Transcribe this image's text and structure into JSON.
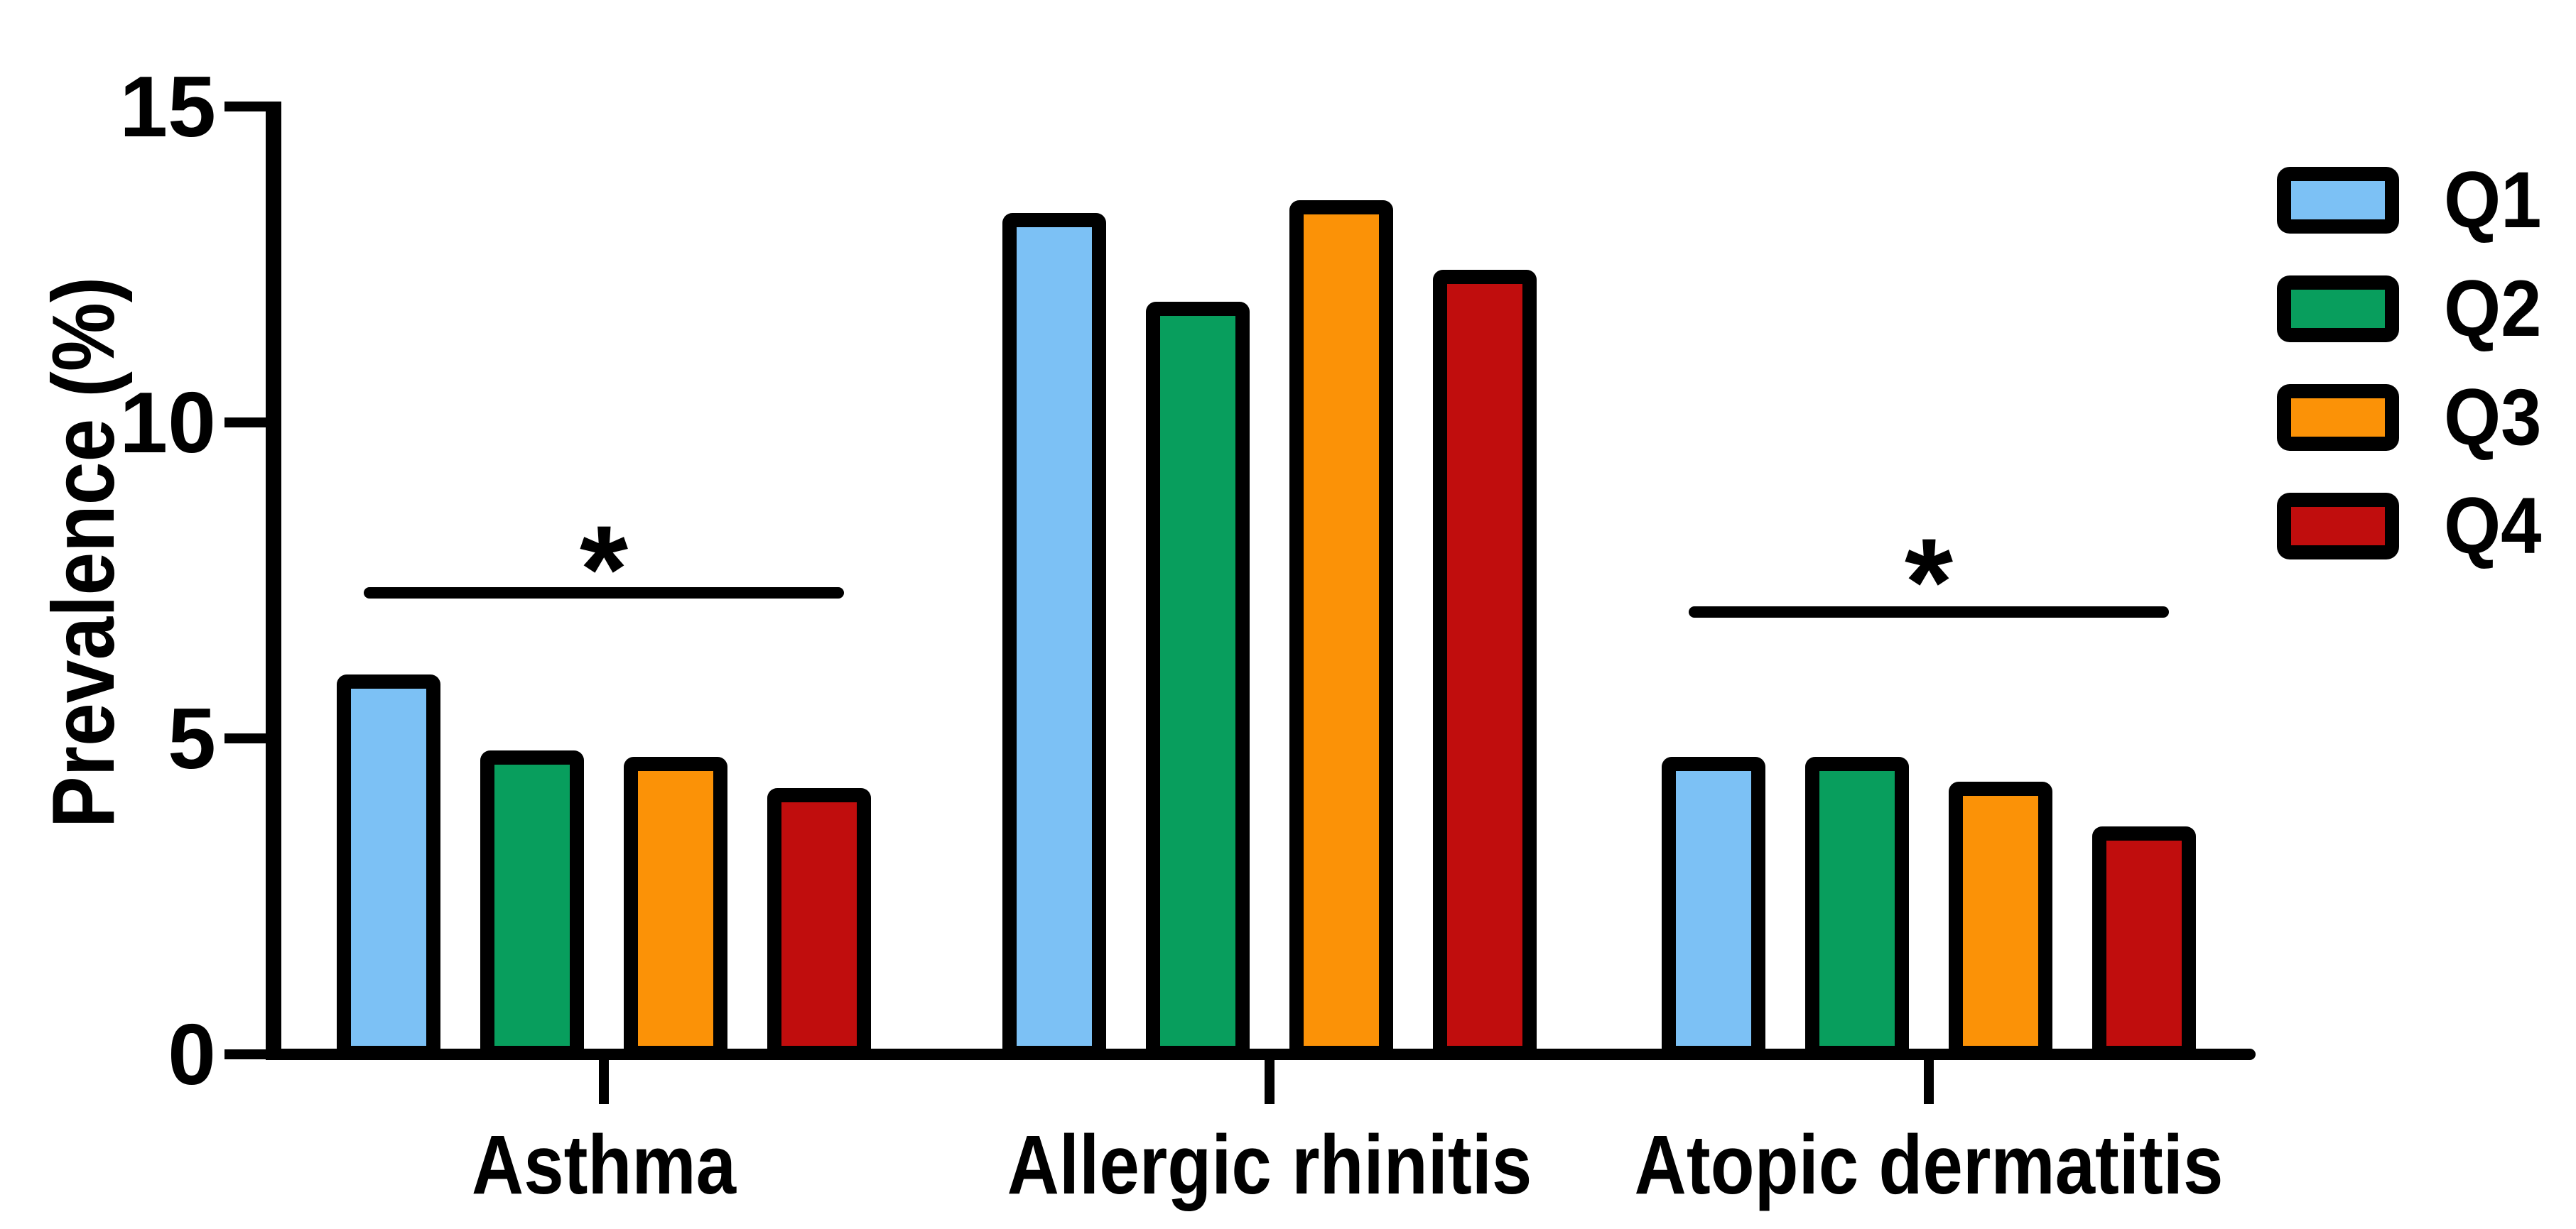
{
  "figure": {
    "background": "#ffffff",
    "axis_color": "#000000",
    "text_color": "#000000"
  },
  "chart_data": {
    "type": "bar",
    "title": "",
    "xlabel": "",
    "ylabel": "Prevalence (%)",
    "categories": [
      "Asthma",
      "Allergic rhinitis",
      "Atopic dermatitis"
    ],
    "series": [
      {
        "name": "Q1",
        "color": "#7CC1F5",
        "values": [
          5.9,
          13.2,
          4.6
        ]
      },
      {
        "name": "Q2",
        "color": "#089E5D",
        "values": [
          4.7,
          11.8,
          4.6
        ]
      },
      {
        "name": "Q3",
        "color": "#FB9207",
        "values": [
          4.6,
          13.4,
          4.2
        ]
      },
      {
        "name": "Q4",
        "color": "#C00D0D",
        "values": [
          4.1,
          12.3,
          3.5
        ]
      }
    ],
    "ylim": [
      0,
      15
    ],
    "yticks": [
      0,
      5,
      10,
      15
    ],
    "grid": false,
    "legend_position": "top-right",
    "bar_border_color": "#000000",
    "annotations": [
      {
        "category": "Asthma",
        "symbol": "*",
        "line_level": 7.3,
        "symbol_level": 8.0
      },
      {
        "category": "Atopic dermatitis",
        "symbol": "*",
        "line_level": 7.0,
        "symbol_level": 7.8
      }
    ]
  }
}
